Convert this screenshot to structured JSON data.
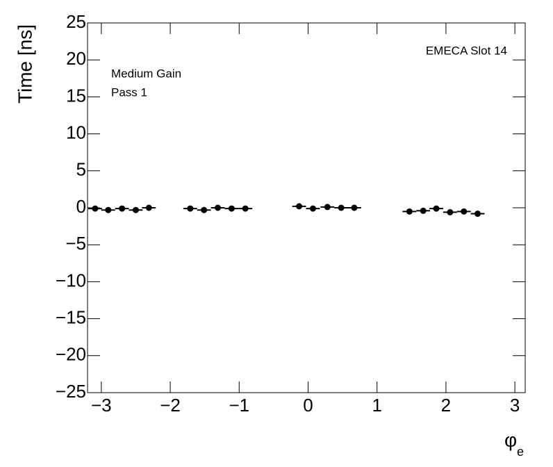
{
  "chart_data": {
    "type": "scatter",
    "x_label": "φ",
    "x_label_subscript": "e",
    "y_label": "Time [ns]",
    "annotations": [
      "EMECA Slot 14",
      "Medium Gain",
      "Pass 1"
    ],
    "xlim": [
      -3.2,
      3.15
    ],
    "ylim": [
      -25,
      25
    ],
    "xticks": [
      {
        "value": -3,
        "label": "−3"
      },
      {
        "value": -2,
        "label": "−2"
      },
      {
        "value": -1,
        "label": "−1"
      },
      0,
      1,
      2,
      3
    ],
    "yticks": [
      {
        "value": -25,
        "label": "−25"
      },
      {
        "value": -20,
        "label": "−20"
      },
      {
        "value": -15,
        "label": "−15"
      },
      {
        "value": -10,
        "label": "−10"
      },
      {
        "value": -5,
        "label": "−5"
      },
      0,
      5,
      10,
      15,
      20,
      25
    ],
    "series": [
      {
        "color": "#000000",
        "x": [
          -3.09,
          -2.9,
          -2.7,
          -2.5,
          -2.31,
          -1.71,
          -1.51,
          -1.31,
          -1.11,
          -0.91,
          -0.13,
          0.07,
          0.28,
          0.48,
          0.67,
          1.47,
          1.67,
          1.86,
          2.06,
          2.26,
          2.46
        ],
        "values": [
          -0.1,
          -0.3,
          -0.1,
          -0.3,
          0.0,
          -0.1,
          -0.3,
          0.0,
          -0.1,
          -0.1,
          0.2,
          -0.1,
          0.1,
          0.0,
          0.0,
          -0.5,
          -0.4,
          -0.1,
          -0.6,
          -0.5,
          -0.8
        ],
        "xerr": [
          0.1,
          0.1,
          0.1,
          0.1,
          0.1,
          0.1,
          0.1,
          0.1,
          0.1,
          0.1,
          0.1,
          0.1,
          0.1,
          0.1,
          0.1,
          0.1,
          0.1,
          0.1,
          0.1,
          0.1,
          0.1
        ]
      }
    ]
  }
}
